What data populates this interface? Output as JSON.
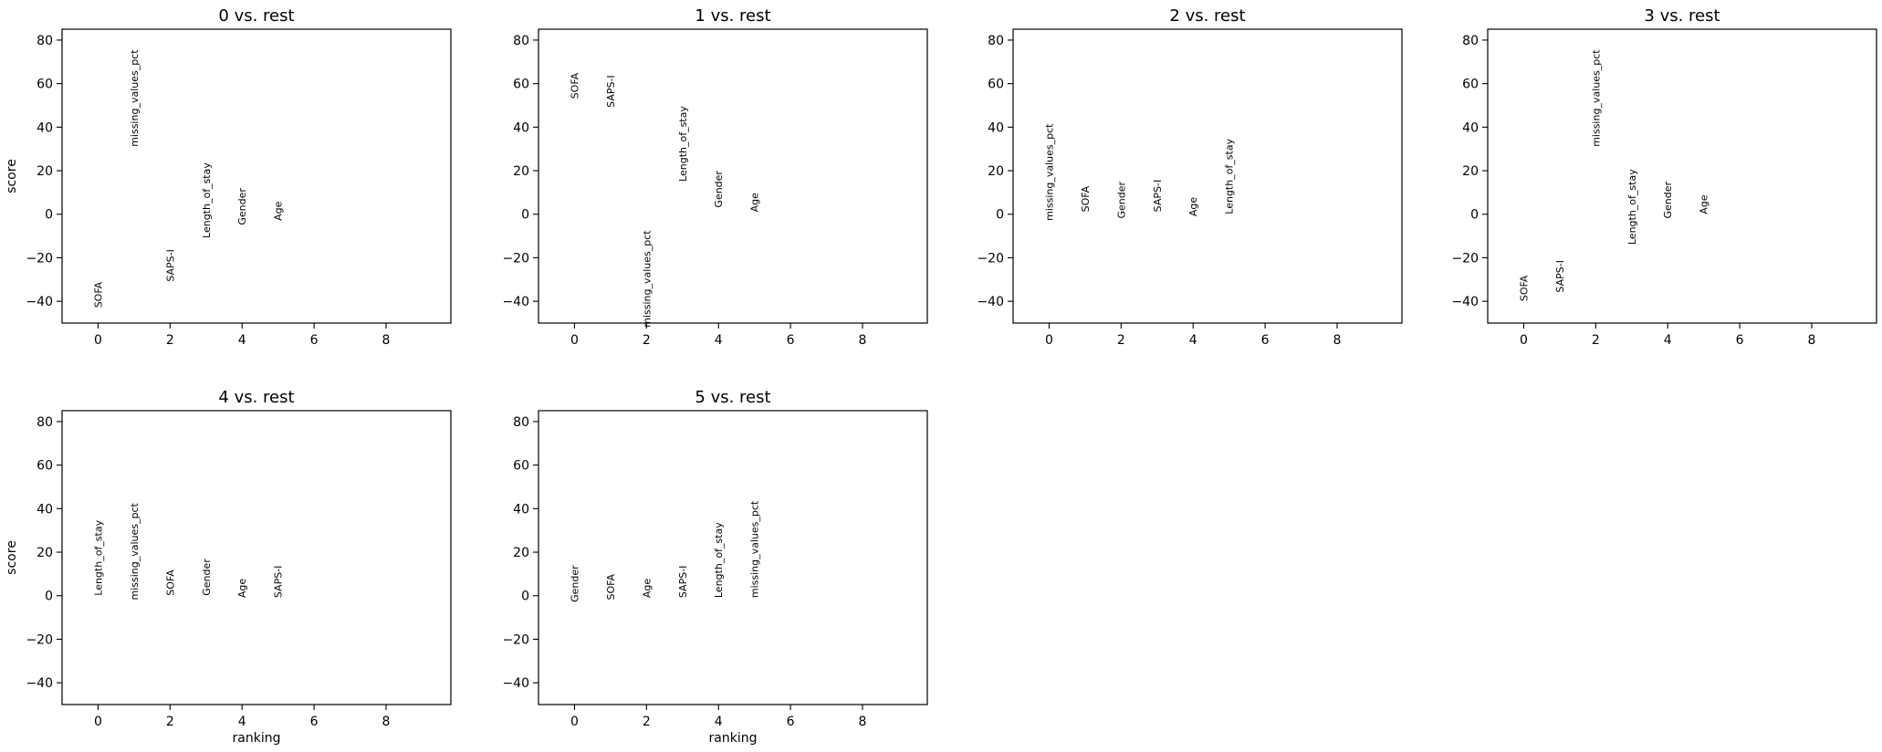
{
  "chart_data": [
    {
      "type": "scatter",
      "title": "0 vs. rest",
      "xlabel": "",
      "ylabel": "score",
      "xlim": [
        -1,
        9.8
      ],
      "ylim": [
        -50,
        85
      ],
      "xticks": [
        "0",
        "2",
        "4",
        "6",
        "8"
      ],
      "yticks": [
        "−40",
        "−20",
        "0",
        "20",
        "40",
        "60",
        "80"
      ],
      "genes": [
        {
          "rank": 0,
          "name": "SOFA",
          "score": -43
        },
        {
          "rank": 1,
          "name": "missing_values_pct",
          "score": 31
        },
        {
          "rank": 2,
          "name": "SAPS-I",
          "score": -31
        },
        {
          "rank": 3,
          "name": "Length_of_stay",
          "score": -11
        },
        {
          "rank": 4,
          "name": "Gender",
          "score": -5
        },
        {
          "rank": 5,
          "name": "Age",
          "score": -3
        }
      ]
    },
    {
      "type": "scatter",
      "title": "1 vs. rest",
      "xlabel": "",
      "ylabel": "",
      "xlim": [
        -1,
        9.8
      ],
      "ylim": [
        -50,
        85
      ],
      "xticks": [
        "0",
        "2",
        "4",
        "6",
        "8"
      ],
      "yticks": [
        "−40",
        "−20",
        "0",
        "20",
        "40",
        "60",
        "80"
      ],
      "genes": [
        {
          "rank": 0,
          "name": "SOFA",
          "score": 53
        },
        {
          "rank": 1,
          "name": "SAPS-I",
          "score": 49
        },
        {
          "rank": 2,
          "name": "missing_values_pct",
          "score": -52
        },
        {
          "rank": 3,
          "name": "Length_of_stay",
          "score": 15
        },
        {
          "rank": 4,
          "name": "Gender",
          "score": 3
        },
        {
          "rank": 5,
          "name": "Age",
          "score": 1
        }
      ]
    },
    {
      "type": "scatter",
      "title": "2 vs. rest",
      "xlabel": "",
      "ylabel": "",
      "xlim": [
        -1,
        9.8
      ],
      "ylim": [
        -50,
        85
      ],
      "xticks": [
        "0",
        "2",
        "4",
        "6",
        "8"
      ],
      "yticks": [
        "−40",
        "−20",
        "0",
        "20",
        "40",
        "60",
        "80"
      ],
      "genes": [
        {
          "rank": 0,
          "name": "missing_values_pct",
          "score": -3
        },
        {
          "rank": 1,
          "name": "SOFA",
          "score": 1
        },
        {
          "rank": 2,
          "name": "Gender",
          "score": -2
        },
        {
          "rank": 3,
          "name": "SAPS-I",
          "score": 1
        },
        {
          "rank": 4,
          "name": "Age",
          "score": -1
        },
        {
          "rank": 5,
          "name": "Length_of_stay",
          "score": 0
        }
      ]
    },
    {
      "type": "scatter",
      "title": "3 vs. rest",
      "xlabel": "",
      "ylabel": "",
      "xlim": [
        -1,
        9.8
      ],
      "ylim": [
        -50,
        85
      ],
      "xticks": [
        "0",
        "2",
        "4",
        "6",
        "8"
      ],
      "yticks": [
        "−40",
        "−20",
        "0",
        "20",
        "40",
        "60",
        "80"
      ],
      "genes": [
        {
          "rank": 0,
          "name": "SOFA",
          "score": -40
        },
        {
          "rank": 1,
          "name": "SAPS-I",
          "score": -36
        },
        {
          "rank": 2,
          "name": "missing_values_pct",
          "score": 31
        },
        {
          "rank": 3,
          "name": "Length_of_stay",
          "score": -14
        },
        {
          "rank": 4,
          "name": "Gender",
          "score": -2
        },
        {
          "rank": 5,
          "name": "Age",
          "score": 0
        }
      ]
    },
    {
      "type": "scatter",
      "title": "4 vs. rest",
      "xlabel": "ranking",
      "ylabel": "score",
      "xlim": [
        -1,
        9.8
      ],
      "ylim": [
        -50,
        85
      ],
      "xticks": [
        "0",
        "2",
        "4",
        "6",
        "8"
      ],
      "yticks": [
        "−40",
        "−20",
        "0",
        "20",
        "40",
        "60",
        "80"
      ],
      "genes": [
        {
          "rank": 0,
          "name": "Length_of_stay",
          "score": 0
        },
        {
          "rank": 1,
          "name": "missing_values_pct",
          "score": -2
        },
        {
          "rank": 2,
          "name": "SOFA",
          "score": 0
        },
        {
          "rank": 3,
          "name": "Gender",
          "score": 0
        },
        {
          "rank": 4,
          "name": "Age",
          "score": -1
        },
        {
          "rank": 5,
          "name": "SAPS-I",
          "score": -1
        }
      ]
    },
    {
      "type": "scatter",
      "title": "5 vs. rest",
      "xlabel": "ranking",
      "ylabel": "",
      "xlim": [
        -1,
        9.8
      ],
      "ylim": [
        -50,
        85
      ],
      "xticks": [
        "0",
        "2",
        "4",
        "6",
        "8"
      ],
      "yticks": [
        "−40",
        "−20",
        "0",
        "20",
        "40",
        "60",
        "80"
      ],
      "genes": [
        {
          "rank": 0,
          "name": "Gender",
          "score": -3
        },
        {
          "rank": 1,
          "name": "SOFA",
          "score": -2
        },
        {
          "rank": 2,
          "name": "Age",
          "score": -1
        },
        {
          "rank": 3,
          "name": "SAPS-I",
          "score": -1
        },
        {
          "rank": 4,
          "name": "Length_of_stay",
          "score": -1
        },
        {
          "rank": 5,
          "name": "missing_values_pct",
          "score": -1
        }
      ]
    }
  ]
}
